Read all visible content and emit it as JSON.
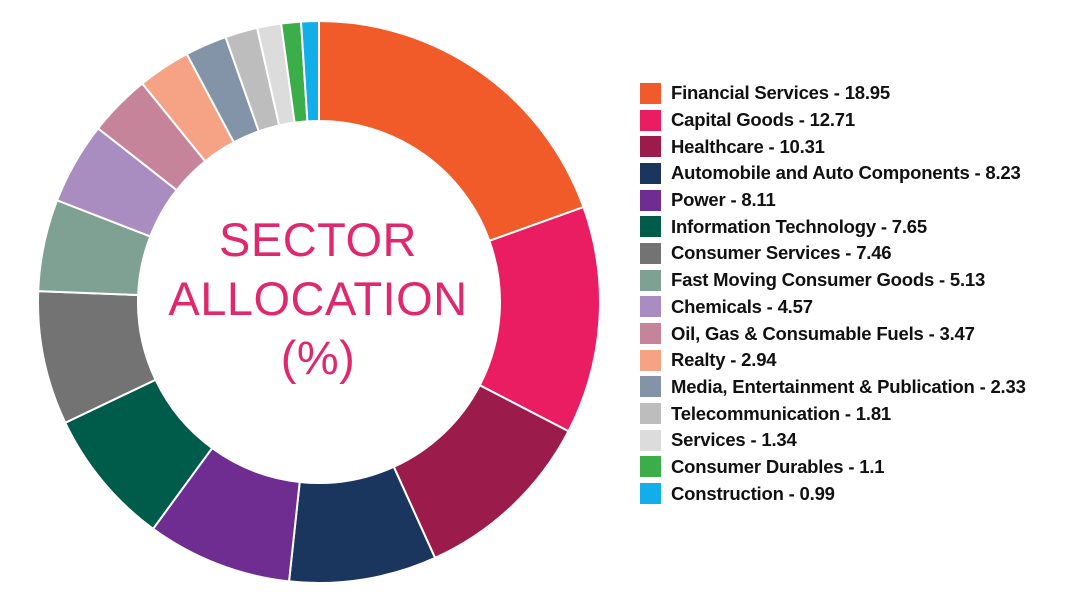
{
  "center_title": {
    "line1": "SECTOR",
    "line2": "ALLOCATION",
    "line3": "(%)"
  },
  "legend": [
    {
      "label": "Financial Services - 18.95"
    },
    {
      "label": "Capital Goods - 12.71"
    },
    {
      "label": "Healthcare - 10.31"
    },
    {
      "label": "Automobile and Auto Components - 8.23"
    },
    {
      "label": "Power - 8.11"
    },
    {
      "label": "Information Technology - 7.65"
    },
    {
      "label": "Consumer Services - 7.46"
    },
    {
      "label": "Fast Moving Consumer Goods - 5.13"
    },
    {
      "label": "Chemicals - 4.57"
    },
    {
      "label": "Oil, Gas & Consumable Fuels - 3.47"
    },
    {
      "label": "Realty - 2.94"
    },
    {
      "label": "Media, Entertainment & Publication - 2.33"
    },
    {
      "label": "Telecommunication - 1.81"
    },
    {
      "label": "Services - 1.34"
    },
    {
      "label": "Consumer Durables - 1.1"
    },
    {
      "label": "Construction - 0.99"
    }
  ],
  "chart_data": {
    "type": "pie",
    "donut": true,
    "title": "SECTOR ALLOCATION (%)",
    "legend_position": "right",
    "categories": [
      "Financial Services",
      "Capital Goods",
      "Healthcare",
      "Automobile and Auto Components",
      "Power",
      "Information Technology",
      "Consumer Services",
      "Fast Moving Consumer Goods",
      "Chemicals",
      "Oil, Gas & Consumable Fuels",
      "Realty",
      "Media, Entertainment & Publication",
      "Telecommunication",
      "Services",
      "Consumer Durables",
      "Construction"
    ],
    "values": [
      18.95,
      12.71,
      10.31,
      8.23,
      8.11,
      7.65,
      7.46,
      5.13,
      4.57,
      3.47,
      2.94,
      2.33,
      1.81,
      1.34,
      1.1,
      0.99
    ],
    "colors": [
      "#f15a29",
      "#ea1c62",
      "#9b1b4b",
      "#1b365e",
      "#6f2c91",
      "#005c4a",
      "#737373",
      "#7fa193",
      "#a98dc1",
      "#c5849a",
      "#f6a385",
      "#8494a8",
      "#bdbdbd",
      "#dcdcdc",
      "#3cae49",
      "#12aee9"
    ]
  }
}
